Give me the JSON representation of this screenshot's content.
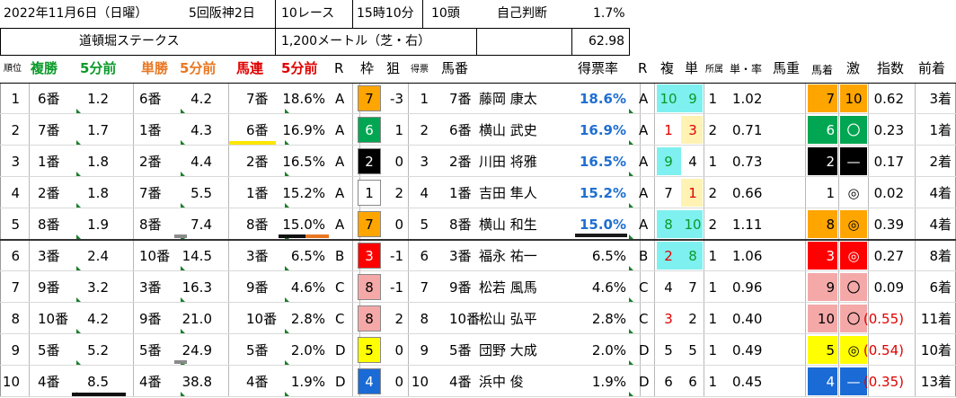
{
  "info": {
    "date": "2022年11月6日（日曜）",
    "meet": "5回阪神2日",
    "race": "10レース",
    "time": "15時10分",
    "heads": "10頭",
    "self_label": "自己判断",
    "self_pct": "1.7%",
    "race_name": "道頓堀ステークス",
    "course": "1,200メートル（芝・右）",
    "score": "62.98"
  },
  "headers": {
    "rank": "順位",
    "fukusho": "複勝",
    "fukusho_t": "5分前",
    "tansho": "単勝",
    "tansho_t": "5分前",
    "umaren": "馬連",
    "umaren_t": "5分前",
    "r1": "R",
    "waku": "枠",
    "nerai": "狙",
    "tokuhyo": "得票",
    "umaban": "馬番",
    "rate": "得票率",
    "r2": "R",
    "fuku": "複",
    "tan": "単",
    "shozoku": "所属",
    "tan_rate": "単・率",
    "bajyu": "馬重",
    "chakujun": "馬着",
    "geki": "激",
    "index": "指数",
    "zenchaku": "前着"
  },
  "rows": [
    {
      "rank": "1",
      "f_no": "6番",
      "f_odds": "1.2",
      "t_no": "6番",
      "t_odds": "4.2",
      "u_no": "7番",
      "u_pct": "18.6%",
      "u_r": "A",
      "waku": "7",
      "nerai": "-3",
      "tk": "1",
      "uma": "7番",
      "jockey": "藤岡 康太",
      "rate": "18.6%",
      "r": "A",
      "fuku": "10",
      "tan": "9",
      "sho": "1",
      "tr": "1.02",
      "chaku": "7",
      "geki": "10",
      "idx": "0.62",
      "zen": "3着"
    },
    {
      "rank": "2",
      "f_no": "7番",
      "f_odds": "1.7",
      "t_no": "1番",
      "t_odds": "4.3",
      "u_no": "6番",
      "u_pct": "16.9%",
      "u_r": "A",
      "waku": "6",
      "nerai": "1",
      "tk": "2",
      "uma": "6番",
      "jockey": "横山 武史",
      "rate": "16.9%",
      "r": "A",
      "fuku": "1",
      "tan": "3",
      "sho": "2",
      "tr": "0.71",
      "chaku": "6",
      "geki": "〇",
      "idx": "0.23",
      "zen": "1着"
    },
    {
      "rank": "3",
      "f_no": "1番",
      "f_odds": "1.8",
      "t_no": "2番",
      "t_odds": "4.4",
      "u_no": "2番",
      "u_pct": "16.5%",
      "u_r": "A",
      "waku": "2",
      "nerai": "0",
      "tk": "3",
      "uma": "2番",
      "jockey": "川田 将雅",
      "rate": "16.5%",
      "r": "A",
      "fuku": "9",
      "tan": "4",
      "sho": "1",
      "tr": "0.73",
      "chaku": "2",
      "geki": "—",
      "idx": "0.17",
      "zen": "2着"
    },
    {
      "rank": "4",
      "f_no": "2番",
      "f_odds": "1.8",
      "t_no": "7番",
      "t_odds": "5.5",
      "u_no": "1番",
      "u_pct": "15.2%",
      "u_r": "A",
      "waku": "1",
      "nerai": "2",
      "tk": "4",
      "uma": "1番",
      "jockey": "吉田 隼人",
      "rate": "15.2%",
      "r": "A",
      "fuku": "7",
      "tan": "1",
      "sho": "2",
      "tr": "0.66",
      "chaku": "1",
      "geki": "◎",
      "idx": "0.02",
      "zen": "4着"
    },
    {
      "rank": "5",
      "f_no": "8番",
      "f_odds": "1.9",
      "t_no": "8番",
      "t_odds": "7.4",
      "u_no": "8番",
      "u_pct": "15.0%",
      "u_r": "A",
      "waku": "7",
      "nerai": "0",
      "tk": "5",
      "uma": "8番",
      "jockey": "横山 和生",
      "rate": "15.0%",
      "r": "A",
      "fuku": "8",
      "tan": "10",
      "sho": "2",
      "tr": "1.11",
      "chaku": "8",
      "geki": "◎",
      "idx": "0.39",
      "zen": "4着"
    },
    {
      "rank": "6",
      "f_no": "3番",
      "f_odds": "2.4",
      "t_no": "10番",
      "t_odds": "14.5",
      "u_no": "3番",
      "u_pct": "6.5%",
      "u_r": "B",
      "waku": "3",
      "nerai": "-1",
      "tk": "6",
      "uma": "3番",
      "jockey": "福永 祐一",
      "rate": "6.5%",
      "r": "B",
      "fuku": "2",
      "tan": "8",
      "sho": "1",
      "tr": "1.06",
      "chaku": "3",
      "geki": "◎",
      "idx": "0.27",
      "zen": "8着"
    },
    {
      "rank": "7",
      "f_no": "9番",
      "f_odds": "3.2",
      "t_no": "3番",
      "t_odds": "16.3",
      "u_no": "9番",
      "u_pct": "4.6%",
      "u_r": "C",
      "waku": "8",
      "nerai": "-1",
      "tk": "7",
      "uma": "9番",
      "jockey": "松若 風馬",
      "rate": "4.6%",
      "r": "C",
      "fuku": "4",
      "tan": "7",
      "sho": "1",
      "tr": "0.96",
      "chaku": "9",
      "geki": "〇",
      "idx": "0.09",
      "zen": "6着"
    },
    {
      "rank": "8",
      "f_no": "10番",
      "f_odds": "4.2",
      "t_no": "9番",
      "t_odds": "21.0",
      "u_no": "10番",
      "u_pct": "2.8%",
      "u_r": "C",
      "waku": "8",
      "nerai": "2",
      "tk": "8",
      "uma": "10番",
      "jockey": "松山 弘平",
      "rate": "2.8%",
      "r": "C",
      "fuku": "3",
      "tan": "2",
      "sho": "1",
      "tr": "0.40",
      "chaku": "10",
      "geki": "〇",
      "idx": "(0.55)",
      "zen": "11着"
    },
    {
      "rank": "9",
      "f_no": "5番",
      "f_odds": "5.2",
      "t_no": "5番",
      "t_odds": "24.9",
      "u_no": "5番",
      "u_pct": "2.0%",
      "u_r": "D",
      "waku": "5",
      "nerai": "0",
      "tk": "9",
      "uma": "5番",
      "jockey": "団野 大成",
      "rate": "2.0%",
      "r": "D",
      "fuku": "5",
      "tan": "5",
      "sho": "1",
      "tr": "0.49",
      "chaku": "5",
      "geki": "◎",
      "idx": "(0.54)",
      "zen": "10着"
    },
    {
      "rank": "10",
      "f_no": "4番",
      "f_odds": "8.5",
      "t_no": "4番",
      "t_odds": "38.8",
      "u_no": "4番",
      "u_pct": "1.9%",
      "u_r": "D",
      "waku": "4",
      "nerai": "0",
      "tk": "10",
      "uma": "4番",
      "jockey": "浜中 俊",
      "rate": "1.9%",
      "r": "D",
      "fuku": "6",
      "tan": "6",
      "sho": "1",
      "tr": "0.45",
      "chaku": "4",
      "geki": "—",
      "idx": "(0.35)",
      "zen": "13着"
    }
  ],
  "colors": {
    "waku": {
      "1": "#ffffff",
      "2": "#000000",
      "3": "#ff0000",
      "4": "#1a6bd6",
      "5": "#ffff00",
      "6": "#00a651",
      "7": "#ffa500",
      "8": "#f4a9a8"
    },
    "fuku_bg": "#7ff0f0",
    "tan_bg": "#fff2b3",
    "index_neg": "#e00000",
    "rate_blue": "#1f6fd1"
  }
}
